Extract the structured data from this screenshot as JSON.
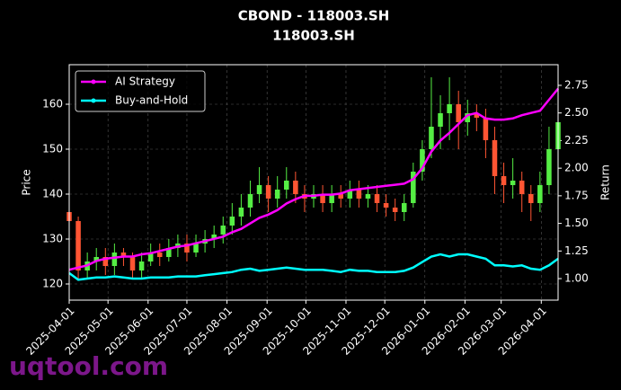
{
  "chart_data": {
    "type": "candlestick",
    "title": "CBOND - 118003.SH",
    "subtitle": "118003.SH",
    "ylabel": "Price",
    "y2label": "Return",
    "watermark": "uqtool.com",
    "x": [
      "2025-04-01",
      "2025-04-08",
      "2025-04-15",
      "2025-04-22",
      "2025-04-29",
      "2025-05-06",
      "2025-05-13",
      "2025-05-20",
      "2025-05-27",
      "2025-06-03",
      "2025-06-10",
      "2025-06-17",
      "2025-06-24",
      "2025-07-01",
      "2025-07-08",
      "2025-07-15",
      "2025-07-22",
      "2025-07-29",
      "2025-08-05",
      "2025-08-12",
      "2025-08-19",
      "2025-08-26",
      "2025-09-02",
      "2025-09-09",
      "2025-09-16",
      "2025-09-23",
      "2025-09-30",
      "2025-10-07",
      "2025-10-14",
      "2025-10-21",
      "2025-10-28",
      "2025-11-04",
      "2025-11-11",
      "2025-11-18",
      "2025-11-25",
      "2025-12-02",
      "2025-12-09",
      "2025-12-16",
      "2025-12-23",
      "2025-12-30",
      "2026-01-06",
      "2026-01-13",
      "2026-01-20",
      "2026-01-27",
      "2026-02-03",
      "2026-02-10",
      "2026-02-17",
      "2026-02-24",
      "2026-03-03",
      "2026-03-10",
      "2026-03-17",
      "2026-03-24",
      "2026-03-31",
      "2026-04-07",
      "2026-04-14"
    ],
    "open": [
      136,
      134,
      123,
      125,
      126,
      124,
      127,
      126,
      123,
      125,
      127,
      126,
      128,
      129,
      127,
      129,
      130,
      131,
      133,
      135,
      137,
      140,
      142,
      139,
      141,
      143,
      140,
      139,
      140,
      138,
      140,
      139,
      141,
      139,
      140,
      138,
      137,
      136,
      138,
      145,
      150,
      155,
      158,
      160,
      156,
      158,
      157,
      152,
      144,
      142,
      143,
      140,
      138,
      142,
      150
    ],
    "high": [
      137,
      135,
      127,
      128,
      128,
      129,
      128,
      127,
      127,
      129,
      129,
      130,
      131,
      131,
      131,
      132,
      133,
      135,
      138,
      140,
      143,
      146,
      144,
      144,
      146,
      145,
      142,
      142,
      142,
      142,
      142,
      143,
      143,
      142,
      142,
      140,
      139,
      140,
      147,
      152,
      166,
      162,
      166,
      163,
      161,
      160,
      159,
      155,
      147,
      148,
      145,
      142,
      145,
      155,
      162
    ],
    "low": [
      132,
      121,
      121,
      123,
      122,
      122,
      124,
      121,
      121,
      124,
      124,
      125,
      126,
      125,
      126,
      127,
      128,
      129,
      131,
      133,
      135,
      138,
      136,
      137,
      139,
      138,
      136,
      137,
      136,
      136,
      137,
      137,
      137,
      137,
      136,
      135,
      134,
      134,
      137,
      143,
      148,
      150,
      152,
      150,
      153,
      154,
      148,
      140,
      138,
      139,
      136,
      134,
      136,
      140,
      148
    ],
    "close": [
      134,
      123,
      125,
      126,
      124,
      127,
      126,
      123,
      125,
      127,
      126,
      128,
      129,
      127,
      129,
      130,
      131,
      133,
      135,
      137,
      140,
      142,
      139,
      141,
      143,
      140,
      139,
      140,
      138,
      140,
      139,
      141,
      139,
      140,
      138,
      137,
      136,
      138,
      145,
      150,
      155,
      158,
      160,
      156,
      158,
      157,
      152,
      144,
      142,
      143,
      140,
      138,
      142,
      150,
      156
    ],
    "up_color": "#55ee44",
    "down_color": "#ff5533",
    "series": [
      {
        "name": "AI Strategy",
        "color": "#ff00ff",
        "axis": "y2",
        "values": [
          1.08,
          1.1,
          1.12,
          1.16,
          1.18,
          1.19,
          1.2,
          1.2,
          1.22,
          1.23,
          1.25,
          1.27,
          1.29,
          1.3,
          1.32,
          1.34,
          1.36,
          1.38,
          1.42,
          1.45,
          1.5,
          1.55,
          1.58,
          1.62,
          1.68,
          1.72,
          1.75,
          1.75,
          1.76,
          1.76,
          1.77,
          1.8,
          1.81,
          1.82,
          1.83,
          1.84,
          1.85,
          1.86,
          1.9,
          2.0,
          2.15,
          2.25,
          2.32,
          2.4,
          2.48,
          2.5,
          2.45,
          2.44,
          2.44,
          2.45,
          2.48,
          2.5,
          2.52,
          2.62,
          2.72
        ]
      },
      {
        "name": "Buy-and-Hold",
        "color": "#00ffff",
        "axis": "y2",
        "values": [
          1.05,
          0.99,
          1.0,
          1.01,
          1.01,
          1.02,
          1.01,
          1.0,
          1.0,
          1.01,
          1.01,
          1.01,
          1.02,
          1.02,
          1.02,
          1.03,
          1.04,
          1.05,
          1.06,
          1.08,
          1.09,
          1.07,
          1.08,
          1.09,
          1.1,
          1.09,
          1.08,
          1.08,
          1.08,
          1.07,
          1.06,
          1.08,
          1.07,
          1.07,
          1.06,
          1.06,
          1.06,
          1.07,
          1.1,
          1.15,
          1.2,
          1.22,
          1.2,
          1.22,
          1.22,
          1.2,
          1.18,
          1.12,
          1.12,
          1.11,
          1.12,
          1.09,
          1.08,
          1.12,
          1.18
        ]
      }
    ],
    "xlim": [
      "2025-04-01",
      "2026-04-14"
    ],
    "xticks": [
      "2025-04-01",
      "2025-05-01",
      "2025-06-01",
      "2025-07-01",
      "2025-08-01",
      "2025-09-01",
      "2025-10-01",
      "2025-11-01",
      "2025-12-01",
      "2026-01-01",
      "2026-02-01",
      "2026-03-01",
      "2026-04-01"
    ],
    "ylim": [
      116.4,
      168.8
    ],
    "yticks": [
      120,
      130,
      140,
      150,
      160
    ],
    "y2lim": [
      0.805,
      2.937
    ],
    "y2ticks": [
      {
        "value": 1,
        "label": "1.00"
      },
      {
        "value": 1.25,
        "label": "1.25"
      },
      {
        "value": 1.5,
        "label": "1.50"
      },
      {
        "value": 1.75,
        "label": "1.75"
      },
      {
        "value": 2,
        "label": "2.00"
      },
      {
        "value": 2.25,
        "label": "2.25"
      },
      {
        "value": 2.5,
        "label": "2.50"
      },
      {
        "value": 2.75,
        "label": "2.75"
      }
    ],
    "grid": true,
    "legend": "upper left"
  }
}
